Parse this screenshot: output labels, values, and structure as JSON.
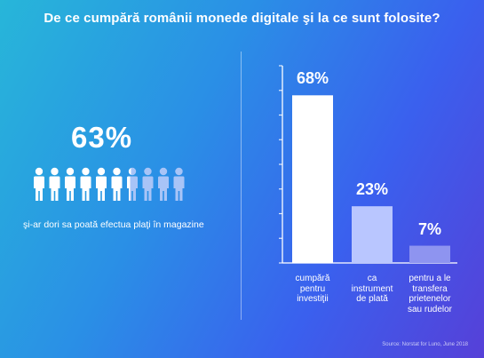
{
  "title": "De ce cumpără românii monede digitale şi la ce sunt folosite?",
  "left_stat": {
    "value": "63%",
    "icon": "person-icon",
    "icons_total": 10,
    "icons_filled": 6.3,
    "caption": "şi-ar dori sa poată efectua plaţi în magazine"
  },
  "chart_data": {
    "type": "bar",
    "categories": [
      "cumpără pentru investiţii",
      "ca instrument de plată",
      "pentru a le transfera prietenelor sau rudelor"
    ],
    "category_lines": [
      [
        "cumpără",
        "pentru",
        "investiţii"
      ],
      [
        "ca",
        "instrument",
        "de plată"
      ],
      [
        "pentru a le",
        "transfera",
        "prietenelor",
        "sau rudelor"
      ]
    ],
    "values": [
      68,
      23,
      7
    ],
    "value_labels": [
      "68%",
      "23%",
      "7%"
    ],
    "ylim": [
      0,
      80
    ],
    "bar_colors": [
      "#ffffff",
      "#b9c6ff",
      "#8e94f0"
    ],
    "grid": false
  },
  "source": "Source: Norstat for Luno, June 2018"
}
